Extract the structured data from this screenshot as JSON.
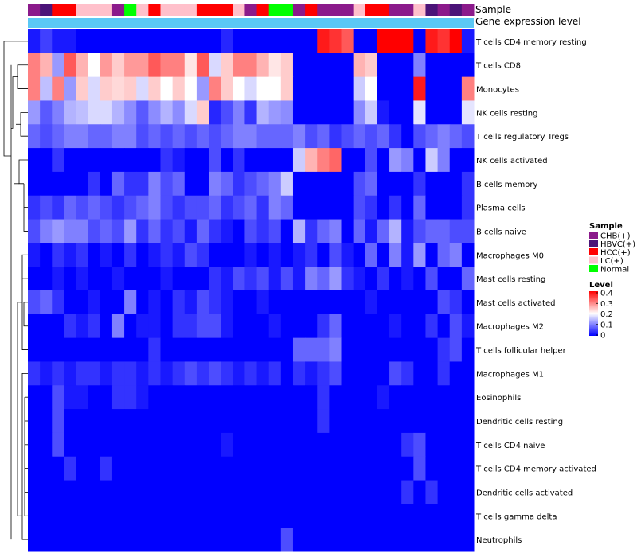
{
  "chart_data": {
    "type": "heatmap",
    "annotation_labels": {
      "sample": "Sample",
      "gene": "Gene expression level"
    },
    "sample_legend": {
      "title": "Sample",
      "items": [
        {
          "label": "CHB(+)",
          "color": "#8B1A8B"
        },
        {
          "label": "HBVC(+)",
          "color": "#4B1478"
        },
        {
          "label": "HCC(+)",
          "color": "#FF0000"
        },
        {
          "label": "LC(+)",
          "color": "#FFC0CB"
        },
        {
          "label": "Normal",
          "color": "#00FF00"
        }
      ]
    },
    "level_legend": {
      "title": "Level",
      "ticks": [
        "0.4",
        "0.3",
        "0.2",
        "0.1",
        "0"
      ],
      "tick_values": [
        0.4,
        0.3,
        0.2,
        0.1,
        0
      ],
      "range": [
        0,
        0.4
      ]
    },
    "gene_bar_color": "#5BC8F5",
    "samples": [
      "CHB(+)",
      "HBVC(+)",
      "HCC(+)",
      "HCC(+)",
      "LC(+)",
      "LC(+)",
      "LC(+)",
      "CHB(+)",
      "Normal",
      "LC(+)",
      "HCC(+)",
      "LC(+)",
      "LC(+)",
      "LC(+)",
      "HCC(+)",
      "HCC(+)",
      "HCC(+)",
      "LC(+)",
      "CHB(+)",
      "HCC(+)",
      "Normal",
      "Normal",
      "CHB(+)",
      "HCC(+)",
      "CHB(+)",
      "CHB(+)",
      "CHB(+)",
      "LC(+)",
      "HCC(+)",
      "HCC(+)",
      "CHB(+)",
      "CHB(+)",
      "LC(+)",
      "HBVC(+)",
      "CHB(+)",
      "HBVC(+)",
      "CHB(+)"
    ],
    "rows": [
      "T cells CD4 memory resting",
      "T cells CD8",
      "Monocytes",
      "NK cells resting",
      "T cells regulatory  Tregs",
      "NK cells activated",
      "B cells memory",
      "Plasma cells",
      "B cells naive",
      "Macrophages M0",
      "Mast cells resting",
      "Mast cells activated",
      "Macrophages M2",
      "T cells follicular helper",
      "Macrophages M1",
      "Eosinophils",
      "Dendritic cells resting",
      "T cells CD4 naive",
      "T cells CD4 memory activated",
      "Dendritic cells activated",
      "T cells gamma delta",
      "Neutrophils"
    ],
    "values": [
      [
        0.02,
        0.05,
        0.02,
        0.02,
        0.0,
        0.0,
        0.0,
        0.0,
        0.0,
        0.0,
        0.0,
        0.0,
        0.0,
        0.0,
        0.0,
        0.0,
        0.03,
        0.0,
        0.0,
        0.0,
        0.0,
        0.0,
        0.0,
        0.0,
        0.38,
        0.36,
        0.33,
        0.0,
        0.0,
        0.4,
        0.4,
        0.4,
        0.0,
        0.38,
        0.36,
        0.4,
        0.02
      ],
      [
        0.3,
        0.26,
        0.12,
        0.33,
        0.26,
        0.2,
        0.28,
        0.24,
        0.28,
        0.28,
        0.33,
        0.3,
        0.3,
        0.22,
        0.33,
        0.17,
        0.24,
        0.3,
        0.3,
        0.26,
        0.22,
        0.24,
        0.0,
        0.0,
        0.0,
        0.0,
        0.0,
        0.26,
        0.24,
        0.0,
        0.0,
        0.0,
        0.1,
        0.0,
        0.0,
        0.0,
        0.0
      ],
      [
        0.3,
        0.15,
        0.3,
        0.12,
        0.24,
        0.17,
        0.24,
        0.23,
        0.24,
        0.17,
        0.24,
        0.2,
        0.24,
        0.2,
        0.12,
        0.3,
        0.24,
        0.2,
        0.17,
        0.2,
        0.2,
        0.24,
        0.0,
        0.0,
        0.0,
        0.0,
        0.0,
        0.16,
        0.2,
        0.0,
        0.0,
        0.0,
        0.38,
        0.0,
        0.0,
        0.0,
        0.3
      ],
      [
        0.12,
        0.07,
        0.1,
        0.14,
        0.15,
        0.17,
        0.17,
        0.14,
        0.11,
        0.07,
        0.11,
        0.14,
        0.11,
        0.17,
        0.24,
        0.03,
        0.06,
        0.1,
        0.04,
        0.14,
        0.12,
        0.11,
        0.0,
        0.0,
        0.0,
        0.0,
        0.0,
        0.11,
        0.16,
        0.02,
        0.0,
        0.0,
        0.18,
        0.0,
        0.0,
        0.0,
        0.18
      ],
      [
        0.08,
        0.06,
        0.08,
        0.1,
        0.1,
        0.08,
        0.08,
        0.1,
        0.1,
        0.06,
        0.08,
        0.06,
        0.08,
        0.06,
        0.08,
        0.06,
        0.08,
        0.1,
        0.1,
        0.08,
        0.08,
        0.08,
        0.1,
        0.06,
        0.08,
        0.04,
        0.06,
        0.08,
        0.06,
        0.08,
        0.04,
        0.0,
        0.06,
        0.08,
        0.1,
        0.08,
        0.06
      ],
      [
        0.0,
        0.0,
        0.04,
        0.0,
        0.0,
        0.0,
        0.0,
        0.0,
        0.0,
        0.0,
        0.0,
        0.04,
        0.02,
        0.0,
        0.0,
        0.06,
        0.0,
        0.04,
        0.0,
        0.0,
        0.0,
        0.0,
        0.16,
        0.26,
        0.3,
        0.32,
        0.0,
        0.0,
        0.06,
        0.0,
        0.12,
        0.1,
        0.0,
        0.16,
        0.1,
        0.0,
        0.0
      ],
      [
        0.0,
        0.0,
        0.0,
        0.0,
        0.0,
        0.04,
        0.0,
        0.08,
        0.04,
        0.04,
        0.1,
        0.06,
        0.08,
        0.0,
        0.0,
        0.1,
        0.08,
        0.04,
        0.06,
        0.08,
        0.1,
        0.16,
        0.0,
        0.0,
        0.0,
        0.0,
        0.0,
        0.06,
        0.08,
        0.0,
        0.0,
        0.0,
        0.04,
        0.0,
        0.0,
        0.0,
        0.04
      ],
      [
        0.04,
        0.06,
        0.04,
        0.08,
        0.06,
        0.08,
        0.06,
        0.04,
        0.06,
        0.08,
        0.1,
        0.06,
        0.04,
        0.06,
        0.06,
        0.08,
        0.04,
        0.06,
        0.08,
        0.04,
        0.1,
        0.08,
        0.0,
        0.0,
        0.0,
        0.0,
        0.0,
        0.06,
        0.04,
        0.0,
        0.04,
        0.0,
        0.08,
        0.0,
        0.0,
        0.0,
        0.04
      ],
      [
        0.06,
        0.1,
        0.12,
        0.1,
        0.1,
        0.06,
        0.08,
        0.06,
        0.12,
        0.04,
        0.08,
        0.04,
        0.06,
        0.02,
        0.08,
        0.04,
        0.02,
        0.0,
        0.06,
        0.04,
        0.06,
        0.0,
        0.14,
        0.04,
        0.08,
        0.1,
        0.0,
        0.08,
        0.02,
        0.08,
        0.14,
        0.02,
        0.06,
        0.08,
        0.08,
        0.06,
        0.06
      ],
      [
        0.02,
        0.0,
        0.04,
        0.02,
        0.04,
        0.0,
        0.02,
        0.0,
        0.04,
        0.0,
        0.02,
        0.04,
        0.02,
        0.06,
        0.04,
        0.0,
        0.0,
        0.0,
        0.02,
        0.0,
        0.02,
        0.0,
        0.02,
        0.04,
        0.0,
        0.06,
        0.02,
        0.0,
        0.08,
        0.0,
        0.1,
        0.02,
        0.12,
        0.0,
        0.08,
        0.1,
        0.0
      ],
      [
        0.0,
        0.0,
        0.02,
        0.0,
        0.02,
        0.0,
        0.0,
        0.02,
        0.0,
        0.0,
        0.0,
        0.02,
        0.0,
        0.0,
        0.0,
        0.04,
        0.02,
        0.06,
        0.04,
        0.06,
        0.02,
        0.06,
        0.02,
        0.1,
        0.08,
        0.12,
        0.04,
        0.02,
        0.0,
        0.04,
        0.0,
        0.02,
        0.0,
        0.06,
        0.0,
        0.0,
        0.08
      ],
      [
        0.06,
        0.08,
        0.04,
        0.0,
        0.0,
        0.02,
        0.0,
        0.0,
        0.1,
        0.0,
        0.02,
        0.0,
        0.04,
        0.02,
        0.06,
        0.04,
        0.02,
        0.0,
        0.0,
        0.02,
        0.0,
        0.0,
        0.0,
        0.0,
        0.0,
        0.0,
        0.0,
        0.0,
        0.02,
        0.0,
        0.0,
        0.0,
        0.0,
        0.0,
        0.06,
        0.04,
        0.0
      ],
      [
        0.0,
        0.0,
        0.0,
        0.04,
        0.02,
        0.04,
        0.0,
        0.1,
        0.0,
        0.02,
        0.02,
        0.0,
        0.04,
        0.04,
        0.06,
        0.06,
        0.02,
        0.0,
        0.0,
        0.0,
        0.02,
        0.0,
        0.0,
        0.0,
        0.04,
        0.08,
        0.0,
        0.0,
        0.0,
        0.0,
        0.02,
        0.0,
        0.0,
        0.04,
        0.0,
        0.06,
        0.02
      ],
      [
        0.0,
        0.0,
        0.0,
        0.0,
        0.0,
        0.0,
        0.0,
        0.0,
        0.0,
        0.0,
        0.04,
        0.0,
        0.0,
        0.0,
        0.0,
        0.0,
        0.0,
        0.0,
        0.0,
        0.0,
        0.0,
        0.0,
        0.08,
        0.08,
        0.08,
        0.1,
        0.0,
        0.0,
        0.0,
        0.0,
        0.0,
        0.0,
        0.0,
        0.0,
        0.04,
        0.06,
        0.0
      ],
      [
        0.04,
        0.02,
        0.04,
        0.02,
        0.04,
        0.04,
        0.02,
        0.04,
        0.04,
        0.02,
        0.04,
        0.02,
        0.04,
        0.06,
        0.04,
        0.06,
        0.04,
        0.02,
        0.04,
        0.02,
        0.04,
        0.0,
        0.04,
        0.02,
        0.04,
        0.06,
        0.0,
        0.0,
        0.0,
        0.0,
        0.06,
        0.04,
        0.0,
        0.0,
        0.04,
        0.0,
        0.0
      ],
      [
        0.0,
        0.0,
        0.06,
        0.02,
        0.02,
        0.0,
        0.0,
        0.04,
        0.04,
        0.02,
        0.0,
        0.0,
        0.0,
        0.0,
        0.0,
        0.0,
        0.0,
        0.0,
        0.0,
        0.0,
        0.0,
        0.0,
        0.0,
        0.0,
        0.04,
        0.0,
        0.0,
        0.0,
        0.0,
        0.02,
        0.0,
        0.0,
        0.0,
        0.0,
        0.0,
        0.0,
        0.0
      ],
      [
        0.0,
        0.0,
        0.06,
        0.0,
        0.0,
        0.0,
        0.0,
        0.0,
        0.0,
        0.0,
        0.0,
        0.0,
        0.0,
        0.0,
        0.0,
        0.0,
        0.0,
        0.0,
        0.0,
        0.0,
        0.0,
        0.0,
        0.0,
        0.0,
        0.04,
        0.0,
        0.0,
        0.0,
        0.0,
        0.0,
        0.0,
        0.0,
        0.0,
        0.0,
        0.0,
        0.0,
        0.0
      ],
      [
        0.0,
        0.0,
        0.06,
        0.0,
        0.0,
        0.0,
        0.0,
        0.0,
        0.0,
        0.0,
        0.0,
        0.0,
        0.0,
        0.0,
        0.0,
        0.0,
        0.02,
        0.0,
        0.0,
        0.0,
        0.0,
        0.0,
        0.0,
        0.0,
        0.0,
        0.0,
        0.0,
        0.0,
        0.0,
        0.0,
        0.0,
        0.04,
        0.06,
        0.0,
        0.0,
        0.0,
        0.0
      ],
      [
        0.0,
        0.0,
        0.0,
        0.04,
        0.0,
        0.0,
        0.04,
        0.0,
        0.0,
        0.0,
        0.0,
        0.0,
        0.0,
        0.0,
        0.0,
        0.0,
        0.0,
        0.0,
        0.0,
        0.0,
        0.0,
        0.0,
        0.0,
        0.0,
        0.0,
        0.0,
        0.0,
        0.0,
        0.0,
        0.0,
        0.0,
        0.0,
        0.06,
        0.0,
        0.0,
        0.0,
        0.0
      ],
      [
        0.0,
        0.0,
        0.0,
        0.0,
        0.0,
        0.0,
        0.0,
        0.0,
        0.0,
        0.0,
        0.0,
        0.0,
        0.0,
        0.0,
        0.0,
        0.0,
        0.0,
        0.0,
        0.0,
        0.0,
        0.0,
        0.0,
        0.0,
        0.0,
        0.0,
        0.0,
        0.0,
        0.0,
        0.0,
        0.0,
        0.0,
        0.04,
        0.0,
        0.04,
        0.0,
        0.0,
        0.0
      ],
      [
        0.0,
        0.0,
        0.0,
        0.0,
        0.0,
        0.0,
        0.0,
        0.0,
        0.0,
        0.0,
        0.0,
        0.0,
        0.0,
        0.0,
        0.0,
        0.0,
        0.0,
        0.0,
        0.0,
        0.0,
        0.0,
        0.0,
        0.0,
        0.0,
        0.0,
        0.0,
        0.0,
        0.0,
        0.0,
        0.0,
        0.0,
        0.0,
        0.0,
        0.0,
        0.0,
        0.0,
        0.0
      ],
      [
        0.0,
        0.0,
        0.0,
        0.0,
        0.0,
        0.0,
        0.0,
        0.0,
        0.0,
        0.0,
        0.0,
        0.0,
        0.0,
        0.0,
        0.0,
        0.0,
        0.0,
        0.0,
        0.0,
        0.0,
        0.0,
        0.06,
        0.0,
        0.0,
        0.0,
        0.0,
        0.0,
        0.0,
        0.0,
        0.0,
        0.0,
        0.0,
        0.0,
        0.0,
        0.0,
        0.0,
        0.0
      ]
    ]
  }
}
